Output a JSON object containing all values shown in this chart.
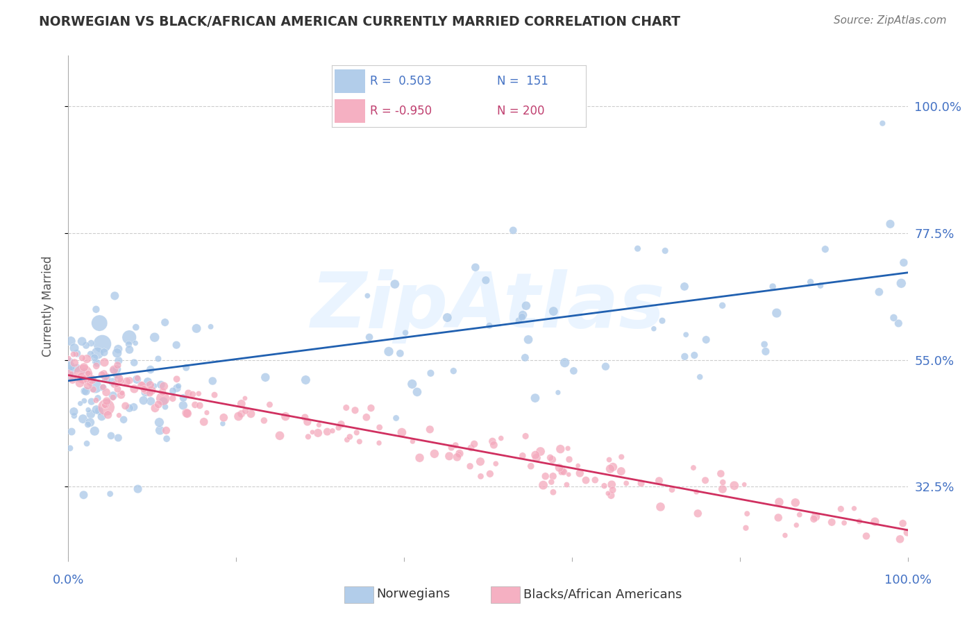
{
  "title": "NORWEGIAN VS BLACK/AFRICAN AMERICAN CURRENTLY MARRIED CORRELATION CHART",
  "source": "Source: ZipAtlas.com",
  "ylabel": "Currently Married",
  "ytick_labels": [
    "32.5%",
    "55.0%",
    "77.5%",
    "100.0%"
  ],
  "ytick_values": [
    0.325,
    0.55,
    0.775,
    1.0
  ],
  "legend_r1": "R =  0.503",
  "legend_n1": "N =  151",
  "legend_r2": "R = -0.950",
  "legend_n2": "N = 200",
  "color_blue": "#aac8e8",
  "color_pink": "#f4a8bc",
  "color_blue_line": "#2060b0",
  "color_pink_line": "#d03060",
  "color_blue_text": "#4472c4",
  "color_pink_text": "#c04070",
  "watermark": "ZipAtlas",
  "background_color": "#ffffff",
  "grid_color": "#cccccc",
  "title_color": "#333333",
  "axis_label_color": "#4472c4"
}
